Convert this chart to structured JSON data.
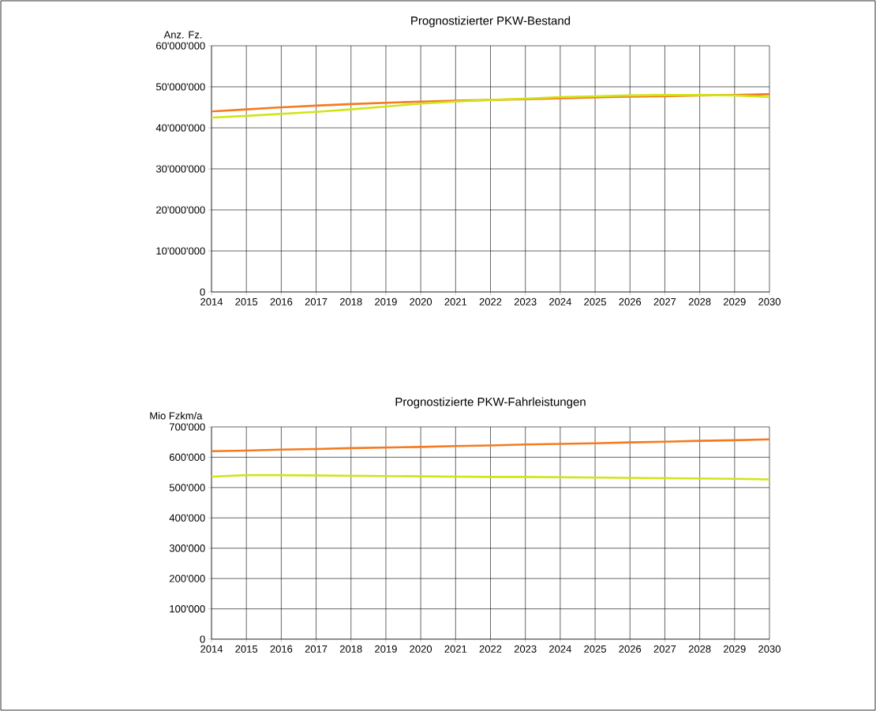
{
  "chart_data": [
    {
      "type": "line",
      "title": "Prognostizierter PKW-Bestand",
      "ylabel": "Anz. Fz.",
      "x": [
        2014,
        2015,
        2016,
        2017,
        2018,
        2019,
        2020,
        2021,
        2022,
        2023,
        2024,
        2025,
        2026,
        2027,
        2028,
        2029,
        2030
      ],
      "xlim": [
        2014,
        2030
      ],
      "xticks": [
        2014,
        2015,
        2016,
        2017,
        2018,
        2019,
        2020,
        2021,
        2022,
        2023,
        2024,
        2025,
        2026,
        2027,
        2028,
        2029,
        2030
      ],
      "ylim": [
        0,
        60000000
      ],
      "yticks": [
        {
          "value": 0,
          "label": "0"
        },
        {
          "value": 10000000,
          "label": "10'000'000"
        },
        {
          "value": 20000000,
          "label": "20'000'000"
        },
        {
          "value": 30000000,
          "label": "30'000'000"
        },
        {
          "value": 40000000,
          "label": "40'000'000"
        },
        {
          "value": 50000000,
          "label": "50'000'000"
        },
        {
          "value": 60000000,
          "label": "60'000'000"
        }
      ],
      "grid": true,
      "series": [
        {
          "color": "#f47b20",
          "values": [
            44000000,
            44500000,
            45000000,
            45400000,
            45800000,
            46100000,
            46400000,
            46600000,
            46800000,
            47000000,
            47200000,
            47400000,
            47600000,
            47700000,
            47900000,
            48000000,
            48200000
          ]
        },
        {
          "color": "#cfe51a",
          "values": [
            42500000,
            42900000,
            43400000,
            43900000,
            44500000,
            45200000,
            45900000,
            46400000,
            46800000,
            47100000,
            47500000,
            47700000,
            47900000,
            48000000,
            48000000,
            47900000,
            47500000
          ]
        }
      ]
    },
    {
      "type": "line",
      "title": "Prognostizierte PKW-Fahrleistungen",
      "ylabel": "Mio Fzkm/a",
      "x": [
        2014,
        2015,
        2016,
        2017,
        2018,
        2019,
        2020,
        2021,
        2022,
        2023,
        2024,
        2025,
        2026,
        2027,
        2028,
        2029,
        2030
      ],
      "xlim": [
        2014,
        2030
      ],
      "xticks": [
        2014,
        2015,
        2016,
        2017,
        2018,
        2019,
        2020,
        2021,
        2022,
        2023,
        2024,
        2025,
        2026,
        2027,
        2028,
        2029,
        2030
      ],
      "ylim": [
        0,
        700000
      ],
      "yticks": [
        {
          "value": 0,
          "label": "0"
        },
        {
          "value": 100000,
          "label": "100'000"
        },
        {
          "value": 200000,
          "label": "200'000"
        },
        {
          "value": 300000,
          "label": "300'000"
        },
        {
          "value": 400000,
          "label": "400'000"
        },
        {
          "value": 500000,
          "label": "500'000"
        },
        {
          "value": 600000,
          "label": "600'000"
        },
        {
          "value": 700000,
          "label": "700'000"
        }
      ],
      "grid": true,
      "series": [
        {
          "color": "#f47b20",
          "values": [
            620000,
            622000,
            625000,
            627000,
            630000,
            632000,
            634000,
            637000,
            639000,
            642000,
            644000,
            646000,
            649000,
            651000,
            654000,
            656000,
            659000
          ]
        },
        {
          "color": "#cfe51a",
          "values": [
            536000,
            541000,
            541000,
            540000,
            539000,
            538000,
            537000,
            536000,
            535000,
            535000,
            534000,
            533000,
            532000,
            531000,
            530000,
            529000,
            527000
          ]
        }
      ]
    }
  ]
}
